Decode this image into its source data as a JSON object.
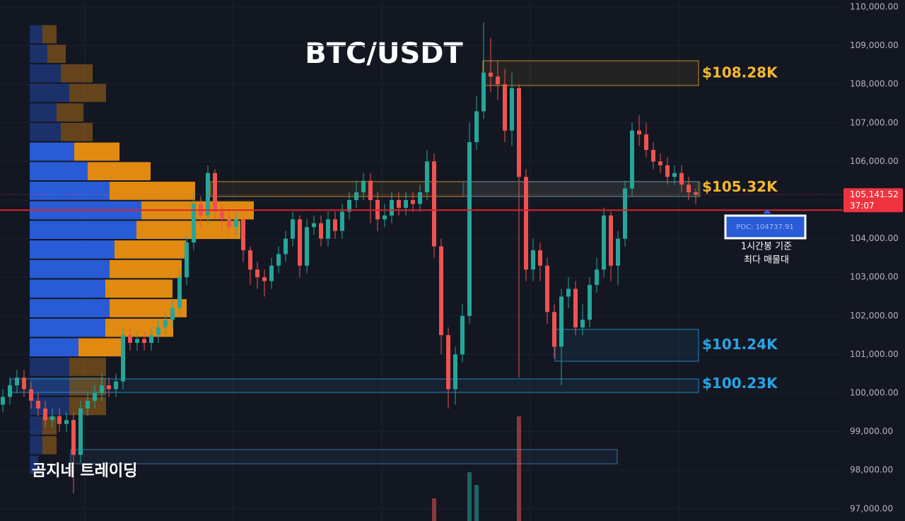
{
  "chart_data": {
    "type": "candlestick",
    "title": "BTC/USDT",
    "watermark": "곰지네 트레이딩",
    "open": [
      99700,
      99900,
      100200,
      100400,
      100100,
      99800,
      99600,
      99300,
      99400,
      99200,
      99300,
      98400,
      99600,
      99800,
      100000,
      100200,
      100100,
      100300,
      101500,
      101300,
      101400,
      101300,
      101500,
      101700,
      101900,
      102200,
      103000,
      103900,
      104900,
      104600,
      105700,
      104700,
      104500,
      104300,
      104500,
      103700,
      103200,
      103000,
      102900,
      103300,
      103600,
      104000,
      104500,
      103300,
      104300,
      104400,
      104000,
      104500,
      104200,
      104700,
      105000,
      105200,
      105500,
      105000,
      104500,
      104600,
      105000,
      104800,
      105000,
      104900,
      105200,
      106000,
      103800,
      101500,
      100100,
      101000,
      102000,
      106500,
      107300,
      108300,
      108200,
      108000,
      106800,
      107900,
      105600,
      103200,
      103700,
      103300,
      102100,
      101200,
      102500,
      102700,
      101700,
      101900,
      102800,
      103200,
      104600,
      103300,
      104000,
      105300,
      106800,
      106700,
      106300,
      106000,
      105900,
      105600,
      105700,
      105400,
      105200
    ],
    "high": [
      100100,
      100400,
      100600,
      100600,
      100300,
      100000,
      99800,
      99600,
      99600,
      99500,
      99500,
      99800,
      100000,
      100200,
      100500,
      100400,
      100500,
      101700,
      101700,
      101600,
      101600,
      101700,
      101900,
      102100,
      102400,
      103200,
      104100,
      105200,
      105100,
      105900,
      105800,
      104900,
      104700,
      104700,
      104600,
      103800,
      103400,
      103200,
      103500,
      103800,
      104200,
      104700,
      104600,
      104500,
      104600,
      104600,
      104700,
      104700,
      104900,
      105200,
      105500,
      105700,
      105700,
      105200,
      104900,
      105200,
      105200,
      105200,
      105200,
      105400,
      106300,
      106200,
      104000,
      101700,
      101200,
      102300,
      107000,
      107700,
      109600,
      109200,
      108600,
      108400,
      108300,
      108000,
      105800,
      104000,
      103900,
      103500,
      102300,
      102700,
      103000,
      102900,
      102300,
      103000,
      103500,
      104800,
      104700,
      104200,
      105500,
      107000,
      107200,
      107000,
      106500,
      106200,
      106100,
      105900,
      105900,
      105600,
      105300
    ],
    "low": [
      99500,
      99700,
      100000,
      99900,
      99600,
      99400,
      99100,
      99100,
      99000,
      99000,
      97400,
      98200,
      99400,
      99600,
      99800,
      99900,
      99900,
      100100,
      101100,
      101100,
      101100,
      101100,
      101300,
      101500,
      101700,
      102000,
      102800,
      103700,
      104300,
      104400,
      104500,
      104200,
      104100,
      104100,
      103400,
      102800,
      102700,
      102500,
      102700,
      103100,
      103400,
      103800,
      103000,
      103100,
      104100,
      103800,
      103800,
      104000,
      104000,
      104500,
      104800,
      105000,
      104400,
      104200,
      104300,
      104400,
      104600,
      104600,
      104700,
      104700,
      105000,
      103500,
      101000,
      99600,
      99700,
      100800,
      101800,
      106300,
      107100,
      107800,
      107600,
      106500,
      106400,
      100400,
      102900,
      102900,
      102900,
      101800,
      100900,
      100200,
      102200,
      101500,
      101500,
      101700,
      102600,
      103000,
      102900,
      102800,
      103800,
      105100,
      106400,
      106100,
      105800,
      105700,
      105400,
      105400,
      105200,
      105000,
      104900
    ],
    "close": [
      99900,
      100200,
      100400,
      100100,
      99800,
      99600,
      99300,
      99400,
      99200,
      99300,
      98400,
      99600,
      99800,
      100000,
      100200,
      100100,
      100300,
      101500,
      101300,
      101400,
      101300,
      101500,
      101700,
      101900,
      102200,
      103000,
      103900,
      104900,
      104600,
      105700,
      104700,
      104500,
      104300,
      104500,
      103700,
      103200,
      103000,
      102900,
      103300,
      103600,
      104000,
      104500,
      103300,
      104300,
      104400,
      104000,
      104500,
      104200,
      104700,
      105000,
      105200,
      105500,
      105000,
      104500,
      104600,
      105000,
      104800,
      105000,
      104900,
      105200,
      106000,
      103800,
      101500,
      100100,
      101000,
      102000,
      106500,
      107300,
      108300,
      108200,
      108000,
      106800,
      107900,
      105600,
      103200,
      103700,
      103300,
      102100,
      101200,
      102500,
      102700,
      101700,
      101900,
      102800,
      103200,
      104600,
      103300,
      104000,
      105300,
      106800,
      106700,
      106300,
      106000,
      105900,
      105600,
      105700,
      105400,
      105200,
      105141.52
    ],
    "volume": [
      null,
      null,
      null,
      null,
      null,
      null,
      null,
      null,
      null,
      null,
      null,
      null,
      null,
      null,
      null,
      null,
      null,
      null,
      null,
      null,
      null,
      null,
      null,
      null,
      null,
      null,
      null,
      null,
      null,
      null,
      null,
      null,
      null,
      null,
      null,
      null,
      null,
      null,
      null,
      null,
      null,
      null,
      null,
      null,
      null,
      null,
      null,
      null,
      null,
      null,
      null,
      null,
      null,
      null,
      null,
      null,
      null,
      null,
      null,
      null,
      null,
      32,
      null,
      null,
      null,
      null,
      69,
      51,
      null,
      null,
      null,
      null,
      null,
      148,
      null,
      null,
      null,
      null,
      null,
      null,
      null,
      null,
      null,
      null,
      null,
      null,
      null,
      null,
      null,
      null,
      null,
      null,
      null,
      null,
      null,
      null,
      null,
      null,
      null
    ],
    "up_color": "#26a69a",
    "down_color": "#ef5350",
    "ylim": [
      96685,
      110183
    ],
    "yticks": [
      {
        "value": 97000,
        "label": "97,000.00"
      },
      {
        "value": 98000,
        "label": "98,000.00"
      },
      {
        "value": 99000,
        "label": "99,000.00"
      },
      {
        "value": 100000,
        "label": "100,000.00"
      },
      {
        "value": 101000,
        "label": "101,000.00"
      },
      {
        "value": 102000,
        "label": "102,000.00"
      },
      {
        "value": 103000,
        "label": "103,000.00"
      },
      {
        "value": 104000,
        "label": "104,000.00"
      },
      {
        "value": 105000,
        "label": "105,000.00"
      },
      {
        "value": 106000,
        "label": "106,000.00"
      },
      {
        "value": 107000,
        "label": "107,000.00"
      },
      {
        "value": 108000,
        "label": "108,000.00"
      },
      {
        "value": 109000,
        "label": "109,000.00"
      },
      {
        "value": 110000,
        "label": "110,000.00"
      }
    ],
    "grid": true,
    "current_price": {
      "value": 105141.52,
      "label": "105,141.52"
    },
    "countdown": "37:07",
    "poc": {
      "value": 104737.91,
      "label": "POC: 104737.91"
    },
    "poc_note": [
      "1시간봉 기준",
      "최다 매물대"
    ],
    "zones": [
      {
        "label": "$108.28K",
        "value": 108280,
        "low": 107967,
        "high": 108608,
        "color": "#f5b82e"
      },
      {
        "label": "$105.32K",
        "value": 105320,
        "low": 105092,
        "high": 105477,
        "color": "#f5b82e"
      },
      {
        "low": 105092,
        "high": 105477,
        "color": "#4a8fc4"
      },
      {
        "label": "$101.24K",
        "value": 101240,
        "low": 100824,
        "high": 101648,
        "color": "#2aa3e6"
      },
      {
        "label": "$100.23K",
        "value": 100230,
        "low": 100018,
        "high": 100366,
        "color": "#2aa3e6"
      },
      {
        "low": 98168,
        "high": 98535,
        "color": "#4a8fc4"
      }
    ],
    "volume_profile": {
      "bins": [
        109550,
        109043,
        108536,
        108029,
        107522,
        107015,
        106508,
        106001,
        105494,
        104987,
        104480,
        103973,
        103466,
        102959,
        102452,
        101945,
        101438,
        100931,
        100424,
        99917,
        99410,
        98903,
        98396,
        97889
      ],
      "buy": [
        18,
        25,
        44,
        56,
        38,
        44,
        63,
        82,
        113,
        158,
        151,
        120,
        113,
        107,
        113,
        107,
        69,
        56,
        56,
        56,
        18,
        18,
        12
      ],
      "sell": [
        20,
        26,
        45,
        52,
        38,
        45,
        64,
        89,
        121,
        159,
        147,
        101,
        102,
        95,
        109,
        96,
        64,
        52,
        52,
        52,
        20,
        20,
        0
      ],
      "value_area": [
        100931,
        106508
      ],
      "buy_color": "#2a5bd7",
      "sell_color": "#e08a12"
    }
  }
}
